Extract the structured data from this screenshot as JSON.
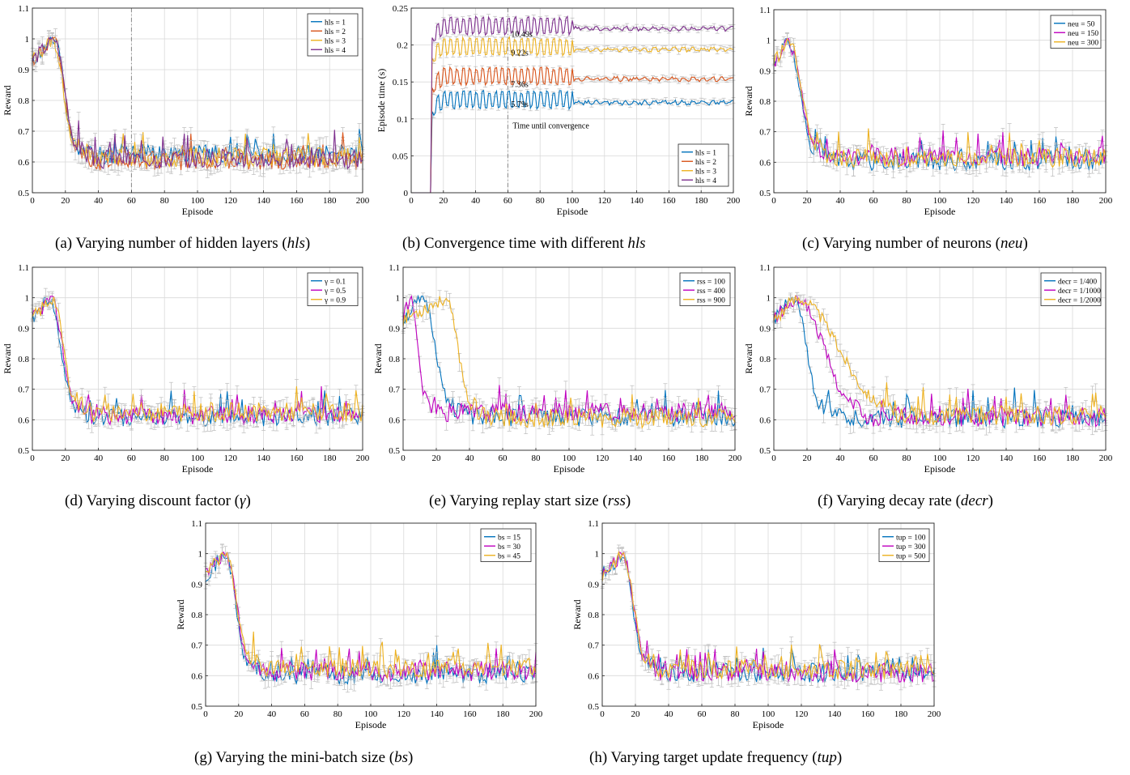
{
  "colors": {
    "blue": "#0072BD",
    "orange": "#D95319",
    "yellow": "#EDB120",
    "purple": "#7E2F8E",
    "magenta": "#C000C0",
    "grid": "#d9d9d9",
    "errorbar": "#bdbdbd"
  },
  "captions": [
    {
      "prefix": "(a) Varying number of hidden layers (",
      "ital": "hls",
      "suffix": ")"
    },
    {
      "prefix": "(b) Convergence time with different ",
      "ital": "hls",
      "suffix": ""
    },
    {
      "prefix": "(c) Varying number of neurons (",
      "ital": "neu",
      "suffix": ")"
    },
    {
      "prefix": "(d) Varying discount factor (",
      "ital": "γ",
      "suffix": ")"
    },
    {
      "prefix": "(e) Varying replay start size (",
      "ital": "rss",
      "suffix": ")"
    },
    {
      "prefix": "(f) Varying decay rate (",
      "ital": "decr",
      "suffix": ")"
    },
    {
      "prefix": "(g) Varying the mini-batch size (",
      "ital": "bs",
      "suffix": ")"
    },
    {
      "prefix": "(h) Varying target update frequency (",
      "ital": "tup",
      "suffix": ")"
    }
  ],
  "chart_data": [
    {
      "id": "a",
      "type": "line",
      "xlabel": "Episode",
      "ylabel": "Reward",
      "xlim": [
        0,
        200
      ],
      "ylim": [
        0.5,
        1.1
      ],
      "xticks": [
        0,
        20,
        40,
        60,
        80,
        100,
        120,
        140,
        160,
        180,
        200
      ],
      "yticks": [
        0.5,
        0.6,
        0.7,
        0.8,
        0.9,
        1,
        1.1
      ],
      "ytick_labels": [
        "0.5",
        "0.6",
        "0.7",
        "0.8",
        "0.9",
        "1",
        "1.1"
      ],
      "grid": true,
      "error_bars": true,
      "legend_position": "top-right",
      "vline": {
        "x": 60
      },
      "series": [
        {
          "name": "hls = 1",
          "color": "blue",
          "peak": 14,
          "drop_end": 25,
          "plateau": 0.625,
          "seed": 11
        },
        {
          "name": "hls = 2",
          "color": "orange",
          "peak": 13,
          "drop_end": 26,
          "plateau": 0.605,
          "seed": 12
        },
        {
          "name": "hls = 3",
          "color": "yellow",
          "peak": 12,
          "drop_end": 26,
          "plateau": 0.615,
          "seed": 13
        },
        {
          "name": "hls = 4",
          "color": "purple",
          "peak": 13,
          "drop_end": 27,
          "plateau": 0.61,
          "seed": 14
        }
      ]
    },
    {
      "id": "b",
      "type": "line",
      "xlabel": "Episode",
      "ylabel": "Episode time (s)",
      "xlim": [
        0,
        200
      ],
      "ylim": [
        0,
        0.25
      ],
      "xticks": [
        0,
        20,
        40,
        60,
        80,
        100,
        120,
        140,
        160,
        180,
        200
      ],
      "yticks": [
        0,
        0.05,
        0.1,
        0.15,
        0.2,
        0.25
      ],
      "ytick_labels": [
        "0",
        "0.05",
        "0.1",
        "0.15",
        "0.2",
        "0.25"
      ],
      "grid": true,
      "error_bars": true,
      "legend_position": "bottom-right",
      "vline": {
        "x": 60
      },
      "annotations": [
        {
          "text": "10.49s",
          "x": 62,
          "y": 0.211
        },
        {
          "text": "9.22s",
          "x": 62,
          "y": 0.186
        },
        {
          "text": "7.36s",
          "x": 62,
          "y": 0.143
        },
        {
          "text": "5.79s",
          "x": 62,
          "y": 0.116
        },
        {
          "text": "Time until convergence",
          "x": 63,
          "y": 0.087
        }
      ],
      "start_x": 13,
      "osc_until": 100,
      "series": [
        {
          "name": "hls = 1",
          "color": "blue",
          "level": 0.122,
          "seed": 21
        },
        {
          "name": "hls = 2",
          "color": "orange",
          "level": 0.154,
          "seed": 22
        },
        {
          "name": "hls = 3",
          "color": "yellow",
          "level": 0.194,
          "seed": 23
        },
        {
          "name": "hls = 4",
          "color": "purple",
          "level": 0.222,
          "seed": 24
        }
      ]
    },
    {
      "id": "c",
      "type": "line",
      "xlabel": "Episode",
      "ylabel": "Reward",
      "xlim": [
        0,
        200
      ],
      "ylim": [
        0.5,
        1.1
      ],
      "xticks": [
        0,
        20,
        40,
        60,
        80,
        100,
        120,
        140,
        160,
        180,
        200
      ],
      "yticks": [
        0.5,
        0.6,
        0.7,
        0.8,
        0.9,
        1,
        1.1
      ],
      "ytick_labels": [
        "0.5",
        "0.6",
        "0.7",
        "0.8",
        "0.9",
        "1",
        "1.1"
      ],
      "grid": true,
      "error_bars": true,
      "legend_position": "top-right",
      "series": [
        {
          "name": "neu = 50",
          "color": "blue",
          "peak": 8,
          "drop_end": 24,
          "plateau": 0.605,
          "seed": 31
        },
        {
          "name": "neu = 150",
          "color": "magenta",
          "peak": 8,
          "drop_end": 25,
          "plateau": 0.62,
          "seed": 32
        },
        {
          "name": "neu = 300",
          "color": "yellow",
          "peak": 9,
          "drop_end": 25,
          "plateau": 0.615,
          "seed": 33
        }
      ]
    },
    {
      "id": "d",
      "type": "line",
      "xlabel": "Episode",
      "ylabel": "Reward",
      "xlim": [
        0,
        200
      ],
      "ylim": [
        0.5,
        1.1
      ],
      "xticks": [
        0,
        20,
        40,
        60,
        80,
        100,
        120,
        140,
        160,
        180,
        200
      ],
      "yticks": [
        0.5,
        0.6,
        0.7,
        0.8,
        0.9,
        1,
        1.1
      ],
      "ytick_labels": [
        "0.5",
        "0.6",
        "0.7",
        "0.8",
        "0.9",
        "1",
        "1.1"
      ],
      "grid": true,
      "error_bars": true,
      "legend_position": "top-right",
      "series": [
        {
          "name": "γ = 0.1",
          "color": "blue",
          "peak": 10,
          "drop_end": 25,
          "plateau": 0.61,
          "seed": 41
        },
        {
          "name": "γ = 0.5",
          "color": "magenta",
          "peak": 11,
          "drop_end": 26,
          "plateau": 0.615,
          "seed": 42
        },
        {
          "name": "γ = 0.9",
          "color": "yellow",
          "peak": 12,
          "drop_end": 26,
          "plateau": 0.625,
          "seed": 43
        }
      ]
    },
    {
      "id": "e",
      "type": "line",
      "xlabel": "Episode",
      "ylabel": "Reward",
      "xlim": [
        0,
        200
      ],
      "ylim": [
        0.5,
        1.1
      ],
      "xticks": [
        0,
        20,
        40,
        60,
        80,
        100,
        120,
        140,
        160,
        180,
        200
      ],
      "yticks": [
        0.5,
        0.6,
        0.7,
        0.8,
        0.9,
        1,
        1.1
      ],
      "ytick_labels": [
        "0.5",
        "0.6",
        "0.7",
        "0.8",
        "0.9",
        "1",
        "1.1"
      ],
      "grid": true,
      "error_bars": true,
      "legend_position": "top-right",
      "series": [
        {
          "name": "rss = 100",
          "color": "blue",
          "peak": 12,
          "drop_end": 28,
          "plateau": 0.61,
          "seed": 51
        },
        {
          "name": "rss = 400",
          "color": "magenta",
          "peak": 4,
          "drop_end": 14,
          "plateau": 0.625,
          "seed": 52
        },
        {
          "name": "rss = 900",
          "color": "yellow",
          "peak": 25,
          "drop_end": 42,
          "plateau": 0.605,
          "seed": 53
        }
      ]
    },
    {
      "id": "f",
      "type": "line",
      "xlabel": "Episode",
      "ylabel": "Reward",
      "xlim": [
        0,
        200
      ],
      "ylim": [
        0.5,
        1.1
      ],
      "xticks": [
        0,
        20,
        40,
        60,
        80,
        100,
        120,
        140,
        160,
        180,
        200
      ],
      "yticks": [
        0.5,
        0.6,
        0.7,
        0.8,
        0.9,
        1,
        1.1
      ],
      "ytick_labels": [
        "0.5",
        "0.6",
        "0.7",
        "0.8",
        "0.9",
        "1",
        "1.1"
      ],
      "grid": true,
      "error_bars": true,
      "legend_position": "top-right",
      "series": [
        {
          "name": "decr = 1/400",
          "color": "blue",
          "peak": 12,
          "drop_end": 28,
          "plateau": 0.605,
          "seed": 61
        },
        {
          "name": "decr = 1/1000",
          "color": "magenta",
          "peak": 14,
          "drop_end": 48,
          "plateau": 0.61,
          "seed": 62
        },
        {
          "name": "decr = 1/2000",
          "color": "yellow",
          "peak": 14,
          "drop_end": 66,
          "plateau": 0.615,
          "seed": 63
        }
      ]
    },
    {
      "id": "g",
      "type": "line",
      "xlabel": "Episode",
      "ylabel": "Reward",
      "xlim": [
        0,
        200
      ],
      "ylim": [
        0.5,
        1.1
      ],
      "xticks": [
        0,
        20,
        40,
        60,
        80,
        100,
        120,
        140,
        160,
        180,
        200
      ],
      "yticks": [
        0.5,
        0.6,
        0.7,
        0.8,
        0.9,
        1,
        1.1
      ],
      "ytick_labels": [
        "0.5",
        "0.6",
        "0.7",
        "0.8",
        "0.9",
        "1",
        "1.1"
      ],
      "grid": true,
      "error_bars": true,
      "legend_position": "top-right",
      "series": [
        {
          "name": "bs = 15",
          "color": "blue",
          "peak": 12,
          "drop_end": 25,
          "plateau": 0.605,
          "seed": 71
        },
        {
          "name": "bs = 30",
          "color": "magenta",
          "peak": 12,
          "drop_end": 26,
          "plateau": 0.615,
          "seed": 72
        },
        {
          "name": "bs = 45",
          "color": "yellow",
          "peak": 12,
          "drop_end": 26,
          "plateau": 0.625,
          "seed": 73
        }
      ]
    },
    {
      "id": "h",
      "type": "line",
      "xlabel": "Episode",
      "ylabel": "Reward",
      "xlim": [
        0,
        200
      ],
      "ylim": [
        0.5,
        1.1
      ],
      "xticks": [
        0,
        20,
        40,
        60,
        80,
        100,
        120,
        140,
        160,
        180,
        200
      ],
      "yticks": [
        0.5,
        0.6,
        0.7,
        0.8,
        0.9,
        1,
        1.1
      ],
      "ytick_labels": [
        "0.5",
        "0.6",
        "0.7",
        "0.8",
        "0.9",
        "1",
        "1.1"
      ],
      "grid": true,
      "error_bars": true,
      "legend_position": "top-right",
      "series": [
        {
          "name": "tup = 100",
          "color": "blue",
          "peak": 12,
          "drop_end": 25,
          "plateau": 0.61,
          "seed": 81
        },
        {
          "name": "tup = 300",
          "color": "magenta",
          "peak": 12,
          "drop_end": 26,
          "plateau": 0.61,
          "seed": 82
        },
        {
          "name": "tup = 500",
          "color": "yellow",
          "peak": 12,
          "drop_end": 26,
          "plateau": 0.62,
          "seed": 83
        }
      ]
    }
  ]
}
